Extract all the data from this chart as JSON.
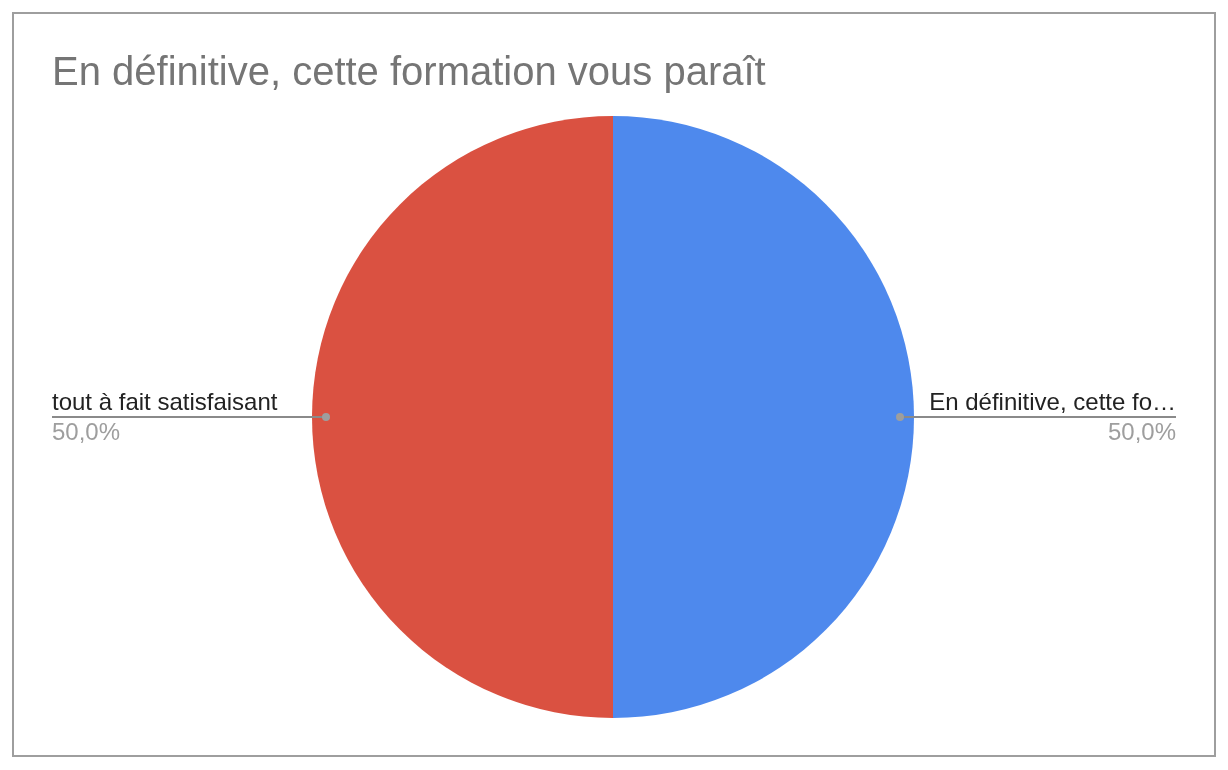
{
  "chart_data": {
    "type": "pie",
    "title": "En définitive, cette formation vous paraît",
    "categories": [
      "En définitive, cette fo…",
      "tout à fait satisfaisant"
    ],
    "values": [
      50,
      50
    ],
    "colors": [
      "#4e89ed",
      "#da5141"
    ],
    "value_labels": [
      "50,0%",
      "50,0%"
    ]
  }
}
